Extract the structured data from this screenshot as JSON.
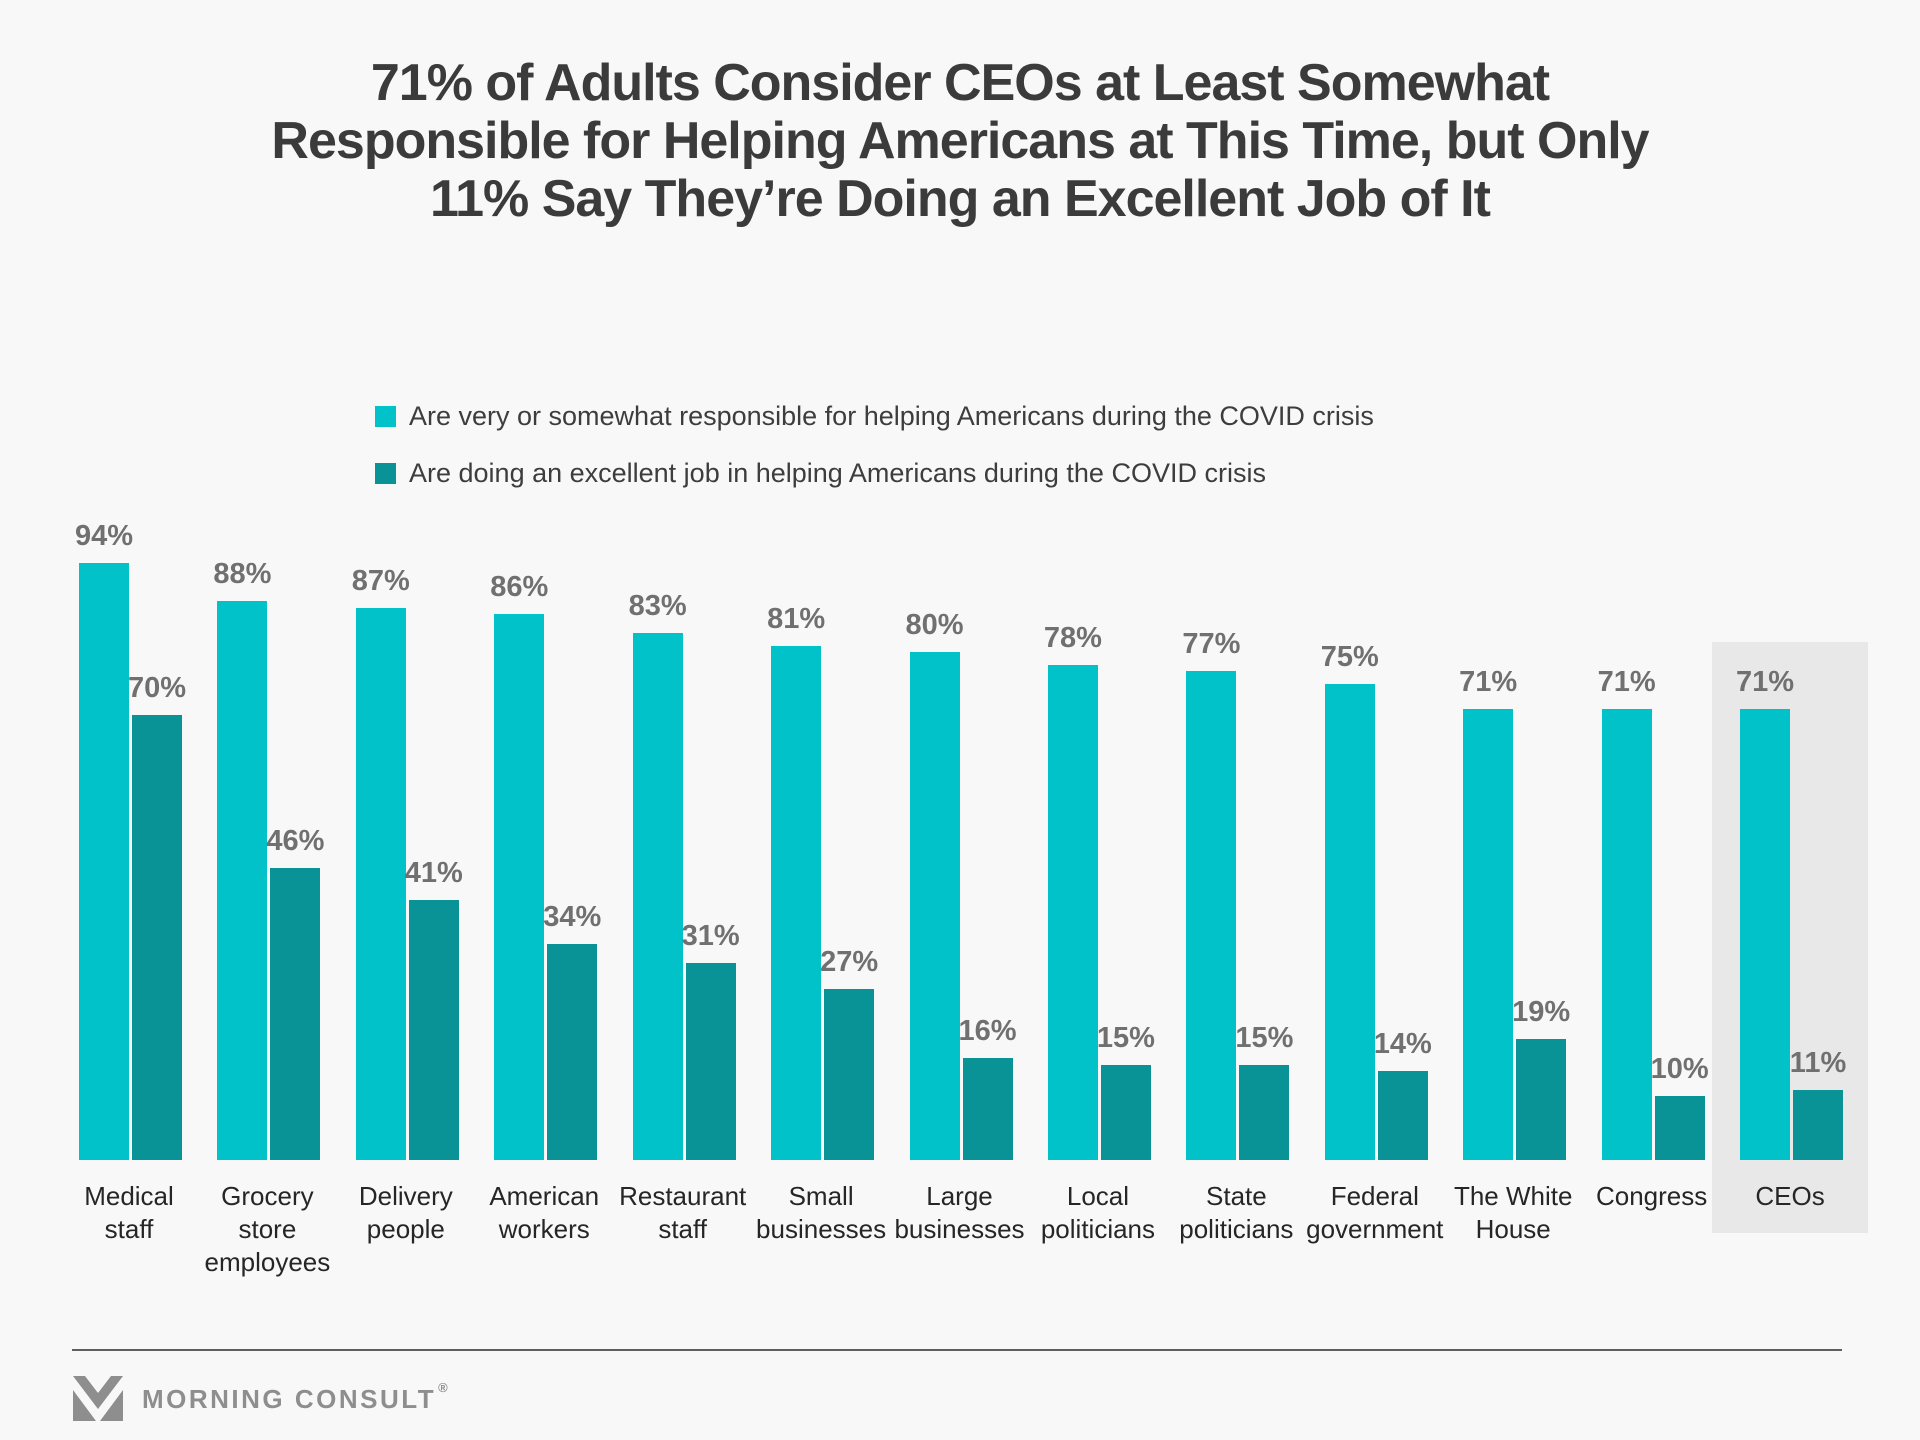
{
  "title": {
    "lines": [
      "71% of Adults Consider CEOs at Least Somewhat",
      "Responsible for Helping Americans at This Time, but Only",
      "11% Say They’re Doing an Excellent Job of It"
    ]
  },
  "legend": [
    {
      "label": "Are very or somewhat responsible for helping Americans during the COVID crisis",
      "color": "#00c2c8"
    },
    {
      "label": "Are doing an excellent job in helping Americans during the COVID crisis",
      "color": "#0a9396"
    }
  ],
  "chart_data": {
    "type": "bar",
    "categories": [
      "Medical\nstaff",
      "Grocery\nstore\nemployees",
      "Delivery\npeople",
      "American\nworkers",
      "Restaurant\nstaff",
      "Small\nbusinesses",
      "Large\nbusinesses",
      "Local\npoliticians",
      "State\npoliticians",
      "Federal\ngovernment",
      "The White\nHouse",
      "Congress",
      "CEOs"
    ],
    "series": [
      {
        "name": "Are very or somewhat responsible for helping Americans during the COVID crisis",
        "color": "#00c2c8",
        "values": [
          94,
          88,
          87,
          86,
          83,
          81,
          80,
          78,
          77,
          75,
          71,
          71,
          71
        ]
      },
      {
        "name": "Are doing an excellent job in helping Americans during the COVID crisis",
        "color": "#0a9396",
        "values": [
          70,
          46,
          41,
          34,
          31,
          27,
          16,
          15,
          15,
          14,
          19,
          10,
          11
        ]
      }
    ],
    "value_suffix": "%",
    "data_labels": true,
    "highlighted_category": "CEOs",
    "highlight_color": "#e8e8e8",
    "ylim": [
      0,
      100
    ],
    "grid": false,
    "axis_lines": false,
    "legend_position": "top-left"
  },
  "footer": {
    "brand": "MORNING CONSULT",
    "registered_mark": "®"
  },
  "colors": {
    "background": "#f8f8f8",
    "title_text": "#3b3b3b",
    "value_label": "#707070",
    "category_label": "#262626",
    "divider": "#5f5f5f",
    "brand_gray": "#8e8e8e"
  }
}
